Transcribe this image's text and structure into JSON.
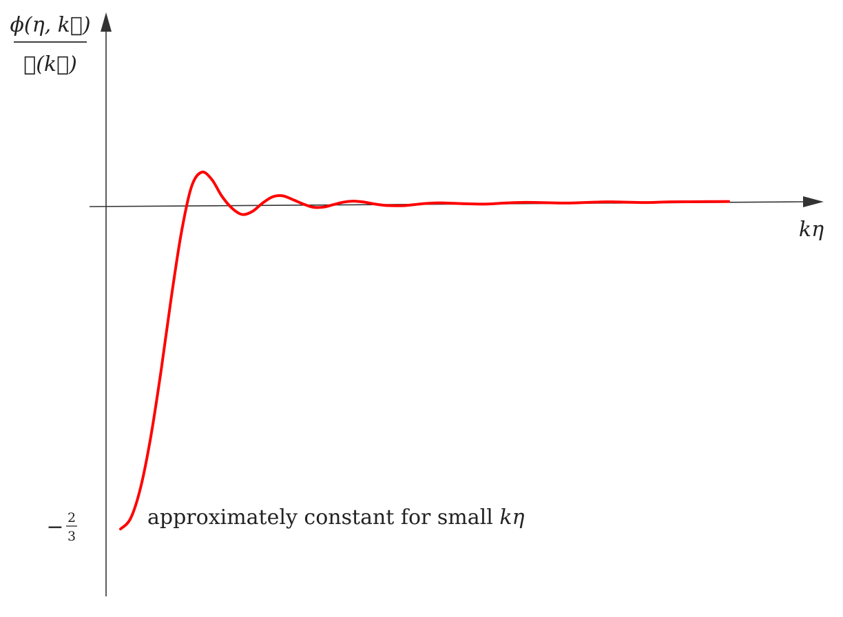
{
  "chart_data": {
    "type": "line",
    "title": "",
    "ylabel": {
      "numerator": "ϕ(η, k⃗)",
      "denominator": "ℛ(k⃗)"
    },
    "xlabel": "kη",
    "yticks": [
      {
        "value": -0.6667,
        "sign": "−",
        "numerator": "2",
        "denominator": "3"
      }
    ],
    "annotation": {
      "prefix": "approximately constant for small ",
      "math": "kη"
    },
    "xlim": [
      0,
      30
    ],
    "ylim": [
      -0.75,
      0.35
    ],
    "grid": false,
    "legend": "none",
    "series": [
      {
        "color": "#ff0000",
        "x": [
          0,
          0.5,
          1,
          1.5,
          2,
          2.5,
          3,
          3.5,
          4,
          4.5,
          5,
          5.5,
          6,
          6.5,
          7,
          7.5,
          8,
          8.5,
          9,
          9.5,
          10,
          10.5,
          11,
          11.5,
          12,
          12.5,
          13,
          13.5,
          14,
          14.5,
          15,
          15.5,
          16,
          17,
          18,
          19,
          20,
          21,
          22,
          23,
          24,
          25,
          26,
          27,
          28,
          29,
          30
        ],
        "y": [
          -0.667,
          -0.645,
          -0.58,
          -0.475,
          -0.34,
          -0.19,
          -0.055,
          0.04,
          0.07,
          0.055,
          0.02,
          -0.005,
          -0.018,
          -0.012,
          0.005,
          0.018,
          0.02,
          0.012,
          0.003,
          -0.004,
          -0.004,
          0.001,
          0.006,
          0.008,
          0.006,
          0.002,
          -0.001,
          -0.002,
          -0.002,
          0.0,
          0.002,
          0.003,
          0.003,
          0.001,
          0.0,
          0.002,
          0.003,
          0.002,
          0.001,
          0.002,
          0.003,
          0.002,
          0.001,
          0.002,
          0.002,
          0.002,
          0.002
        ]
      }
    ]
  }
}
